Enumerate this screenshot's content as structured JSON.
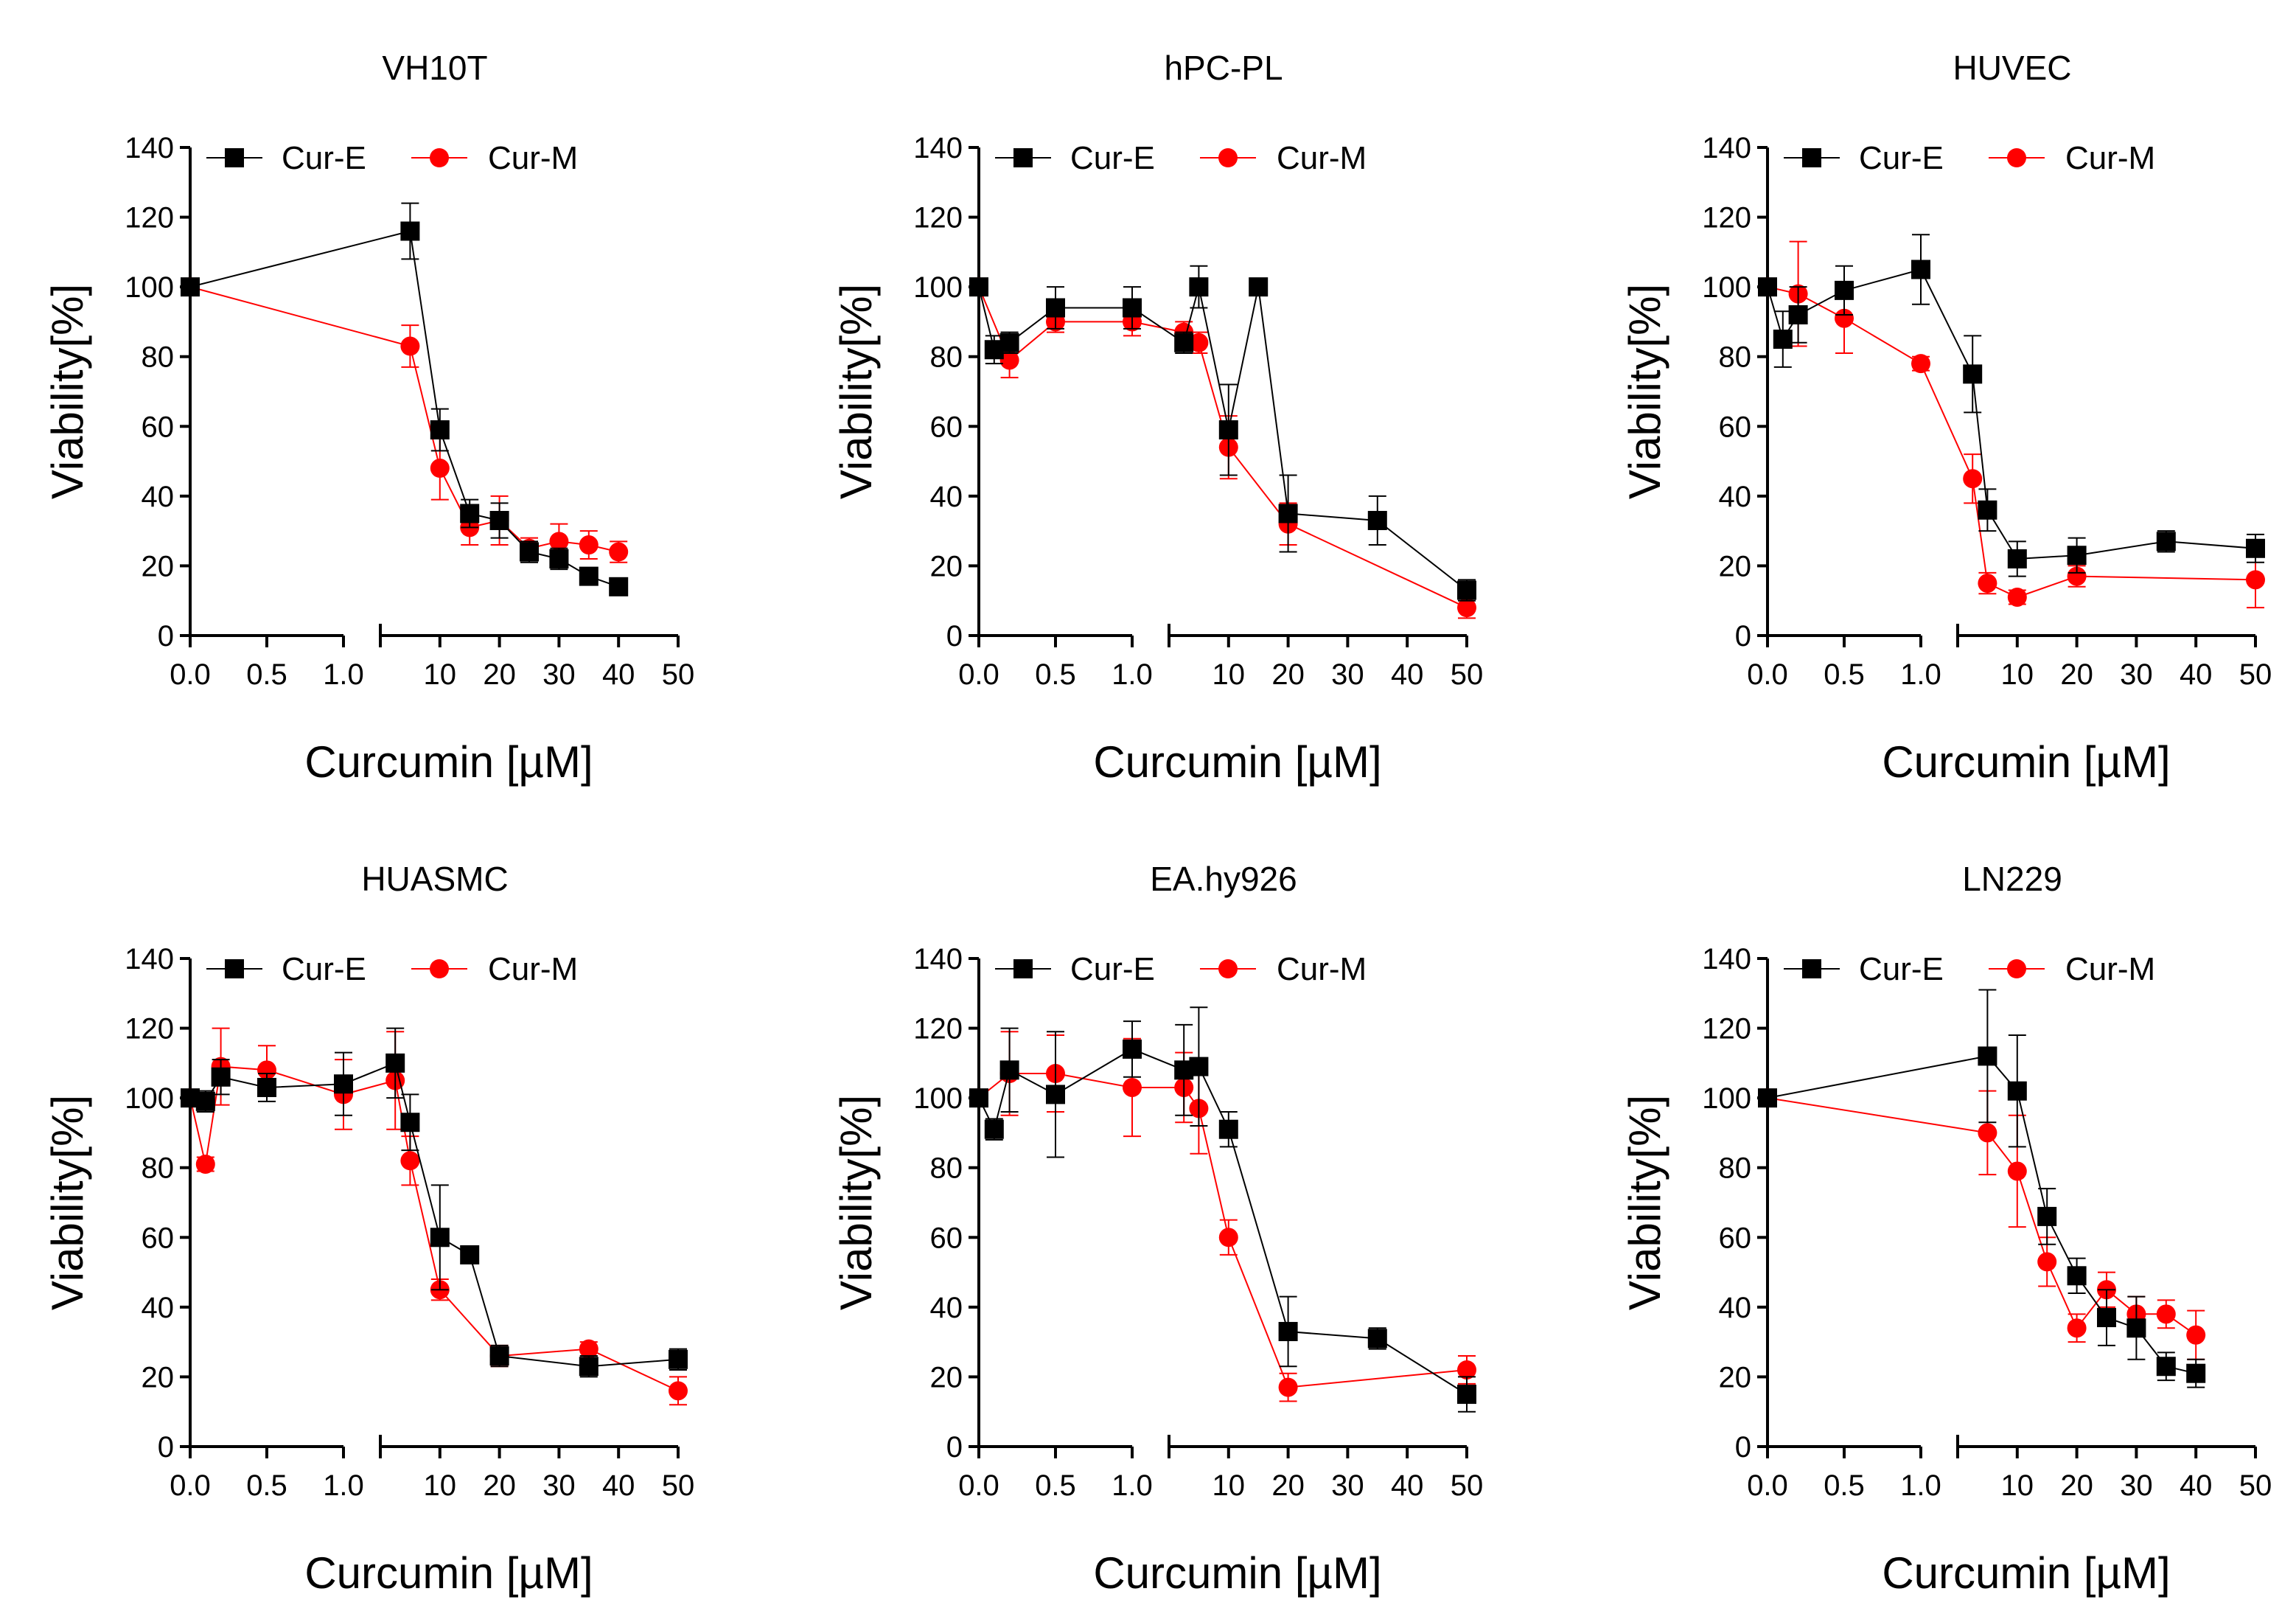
{
  "colors": {
    "cur_e": "#000000",
    "cur_m": "#ff0000"
  },
  "chart_data": [
    {
      "type": "line",
      "title": "VH10T",
      "xlabel": "Curcumin [µM]",
      "ylabel": "Viability[%]",
      "ylim": [
        0,
        140
      ],
      "yticks": [
        "0",
        "20",
        "40",
        "60",
        "80",
        "100",
        "120",
        "140"
      ],
      "x_left_ticks": [
        "0.0",
        "0.5",
        "1.0"
      ],
      "x_right_ticks": [
        "10",
        "20",
        "30",
        "40",
        "50"
      ],
      "x_right_range": [
        0,
        50
      ],
      "legend": [
        "Cur-E",
        "Cur-M"
      ],
      "series": [
        {
          "name": "Cur-E",
          "points": [
            [
              0,
              100,
              0
            ],
            [
              5,
              116,
              8
            ],
            [
              10,
              59,
              6
            ],
            [
              15,
              35,
              4
            ],
            [
              20,
              33,
              5
            ],
            [
              25,
              24,
              3
            ],
            [
              30,
              22,
              3
            ],
            [
              35,
              17,
              2
            ],
            [
              40,
              14,
              2
            ]
          ]
        },
        {
          "name": "Cur-M",
          "points": [
            [
              0,
              100,
              0
            ],
            [
              5,
              83,
              6
            ],
            [
              10,
              48,
              9
            ],
            [
              15,
              31,
              5
            ],
            [
              20,
              33,
              7
            ],
            [
              25,
              25,
              3
            ],
            [
              30,
              27,
              5
            ],
            [
              35,
              26,
              4
            ],
            [
              40,
              24,
              3
            ]
          ]
        }
      ]
    },
    {
      "type": "line",
      "title": "hPC-PL",
      "xlabel": "Curcumin [µM]",
      "ylabel": "Viability[%]",
      "ylim": [
        0,
        140
      ],
      "yticks": [
        "0",
        "20",
        "40",
        "60",
        "80",
        "100",
        "120",
        "140"
      ],
      "x_left_ticks": [
        "0.0",
        "0.5",
        "1.0"
      ],
      "x_right_ticks": [
        "10",
        "20",
        "30",
        "40",
        "50"
      ],
      "x_right_range": [
        0,
        50
      ],
      "legend": [
        "Cur-E",
        "Cur-M"
      ],
      "series": [
        {
          "name": "Cur-E",
          "points": [
            [
              0,
              100,
              0
            ],
            [
              0.1,
              82,
              4
            ],
            [
              0.2,
              84,
              3
            ],
            [
              0.5,
              94,
              6
            ],
            [
              1,
              94,
              6
            ],
            [
              2.5,
              84,
              3
            ],
            [
              5,
              100,
              6
            ],
            [
              10,
              59,
              13
            ],
            [
              15,
              100,
              0
            ],
            [
              20,
              35,
              11
            ],
            [
              35,
              33,
              7
            ],
            [
              50,
              13,
              3
            ]
          ]
        },
        {
          "name": "Cur-M",
          "points": [
            [
              0,
              100,
              0
            ],
            [
              0.2,
              79,
              5
            ],
            [
              0.5,
              90,
              3
            ],
            [
              1,
              90,
              4
            ],
            [
              2.5,
              87,
              3
            ],
            [
              5,
              84,
              3
            ],
            [
              10,
              54,
              9
            ],
            [
              20,
              32,
              6
            ],
            [
              50,
              8,
              3
            ]
          ]
        }
      ]
    },
    {
      "type": "line",
      "title": "HUVEC",
      "xlabel": "Curcumin [µM]",
      "ylabel": "Viability[%]",
      "ylim": [
        0,
        140
      ],
      "yticks": [
        "0",
        "20",
        "40",
        "60",
        "80",
        "100",
        "120",
        "140"
      ],
      "x_left_ticks": [
        "0.0",
        "0.5",
        "1.0"
      ],
      "x_right_ticks": [
        "10",
        "20",
        "30",
        "40",
        "50"
      ],
      "x_right_range": [
        0,
        50
      ],
      "legend": [
        "Cur-E",
        "Cur-M"
      ],
      "series": [
        {
          "name": "Cur-E",
          "points": [
            [
              0,
              100,
              0
            ],
            [
              0.1,
              85,
              8
            ],
            [
              0.2,
              92,
              8
            ],
            [
              0.5,
              99,
              7
            ],
            [
              1,
              105,
              10
            ],
            [
              2.5,
              75,
              11
            ],
            [
              5,
              36,
              6
            ],
            [
              10,
              22,
              5
            ],
            [
              20,
              23,
              5
            ],
            [
              35,
              27,
              3
            ],
            [
              50,
              25,
              4
            ]
          ]
        },
        {
          "name": "Cur-M",
          "points": [
            [
              0,
              100,
              0
            ],
            [
              0.2,
              98,
              15
            ],
            [
              0.5,
              91,
              10
            ],
            [
              1,
              78,
              2
            ],
            [
              2.5,
              45,
              7
            ],
            [
              5,
              15,
              3
            ],
            [
              10,
              11,
              2
            ],
            [
              20,
              17,
              3
            ],
            [
              50,
              16,
              8
            ]
          ]
        }
      ]
    },
    {
      "type": "line",
      "title": "HUASMC",
      "xlabel": "Curcumin [µM]",
      "ylabel": "Viability[%]",
      "ylim": [
        0,
        140
      ],
      "yticks": [
        "0",
        "20",
        "40",
        "60",
        "80",
        "100",
        "120",
        "140"
      ],
      "x_left_ticks": [
        "0.0",
        "0.5",
        "1.0"
      ],
      "x_right_ticks": [
        "10",
        "20",
        "30",
        "40",
        "50"
      ],
      "x_right_range": [
        0,
        50
      ],
      "legend": [
        "Cur-E",
        "Cur-M"
      ],
      "series": [
        {
          "name": "Cur-E",
          "points": [
            [
              0,
              100,
              0
            ],
            [
              0.1,
              99,
              3
            ],
            [
              0.2,
              106,
              5
            ],
            [
              0.5,
              103,
              4
            ],
            [
              1,
              104,
              9
            ],
            [
              2.5,
              110,
              10
            ],
            [
              5,
              93,
              8
            ],
            [
              10,
              60,
              15
            ],
            [
              15,
              55,
              2
            ],
            [
              20,
              26,
              3
            ],
            [
              35,
              23,
              3
            ],
            [
              50,
              25,
              3
            ]
          ]
        },
        {
          "name": "Cur-M",
          "points": [
            [
              0,
              100,
              0
            ],
            [
              0.1,
              81,
              2
            ],
            [
              0.2,
              109,
              11
            ],
            [
              0.5,
              108,
              7
            ],
            [
              1,
              101,
              10
            ],
            [
              2.5,
              105,
              14
            ],
            [
              5,
              82,
              7
            ],
            [
              10,
              45,
              3
            ],
            [
              20,
              26,
              3
            ],
            [
              35,
              28,
              2
            ],
            [
              50,
              16,
              4
            ]
          ]
        }
      ]
    },
    {
      "type": "line",
      "title": "EA.hy926",
      "xlabel": "Curcumin [µM]",
      "ylabel": "Viability[%]",
      "ylim": [
        0,
        140
      ],
      "yticks": [
        "0",
        "20",
        "40",
        "60",
        "80",
        "100",
        "120",
        "140"
      ],
      "x_left_ticks": [
        "0.0",
        "0.5",
        "1.0"
      ],
      "x_right_ticks": [
        "10",
        "20",
        "30",
        "40",
        "50"
      ],
      "x_right_range": [
        0,
        50
      ],
      "legend": [
        "Cur-E",
        "Cur-M"
      ],
      "series": [
        {
          "name": "Cur-E",
          "points": [
            [
              0,
              100,
              0
            ],
            [
              0.1,
              91,
              3
            ],
            [
              0.2,
              108,
              12
            ],
            [
              0.5,
              101,
              18
            ],
            [
              1,
              114,
              8
            ],
            [
              2.5,
              108,
              13
            ],
            [
              5,
              109,
              17
            ],
            [
              10,
              91,
              5
            ],
            [
              20,
              33,
              10
            ],
            [
              35,
              31,
              3
            ],
            [
              50,
              15,
              5
            ]
          ]
        },
        {
          "name": "Cur-M",
          "points": [
            [
              0,
              100,
              0
            ],
            [
              0.2,
              107,
              12
            ],
            [
              0.5,
              107,
              11
            ],
            [
              1,
              103,
              14
            ],
            [
              2.5,
              103,
              10
            ],
            [
              5,
              97,
              13
            ],
            [
              10,
              60,
              5
            ],
            [
              20,
              17,
              4
            ],
            [
              50,
              22,
              4
            ]
          ]
        }
      ]
    },
    {
      "type": "line",
      "title": "LN229",
      "xlabel": "Curcumin [µM]",
      "ylabel": "Viability[%]",
      "ylim": [
        0,
        140
      ],
      "yticks": [
        "0",
        "20",
        "40",
        "60",
        "80",
        "100",
        "120",
        "140"
      ],
      "x_left_ticks": [
        "0.0",
        "0.5",
        "1.0"
      ],
      "x_right_ticks": [
        "10",
        "20",
        "30",
        "40",
        "50"
      ],
      "x_right_range": [
        0,
        50
      ],
      "legend": [
        "Cur-E",
        "Cur-M"
      ],
      "series": [
        {
          "name": "Cur-E",
          "points": [
            [
              0,
              100,
              0
            ],
            [
              5,
              112,
              19
            ],
            [
              10,
              102,
              16
            ],
            [
              15,
              66,
              8
            ],
            [
              20,
              49,
              5
            ],
            [
              25,
              37,
              8
            ],
            [
              30,
              34,
              9
            ],
            [
              35,
              23,
              4
            ],
            [
              40,
              21,
              4
            ]
          ]
        },
        {
          "name": "Cur-M",
          "points": [
            [
              0,
              100,
              0
            ],
            [
              5,
              90,
              12
            ],
            [
              10,
              79,
              16
            ],
            [
              15,
              53,
              7
            ],
            [
              20,
              34,
              4
            ],
            [
              25,
              45,
              5
            ],
            [
              30,
              38,
              5
            ],
            [
              35,
              38,
              4
            ],
            [
              40,
              32,
              7
            ]
          ]
        }
      ]
    }
  ]
}
